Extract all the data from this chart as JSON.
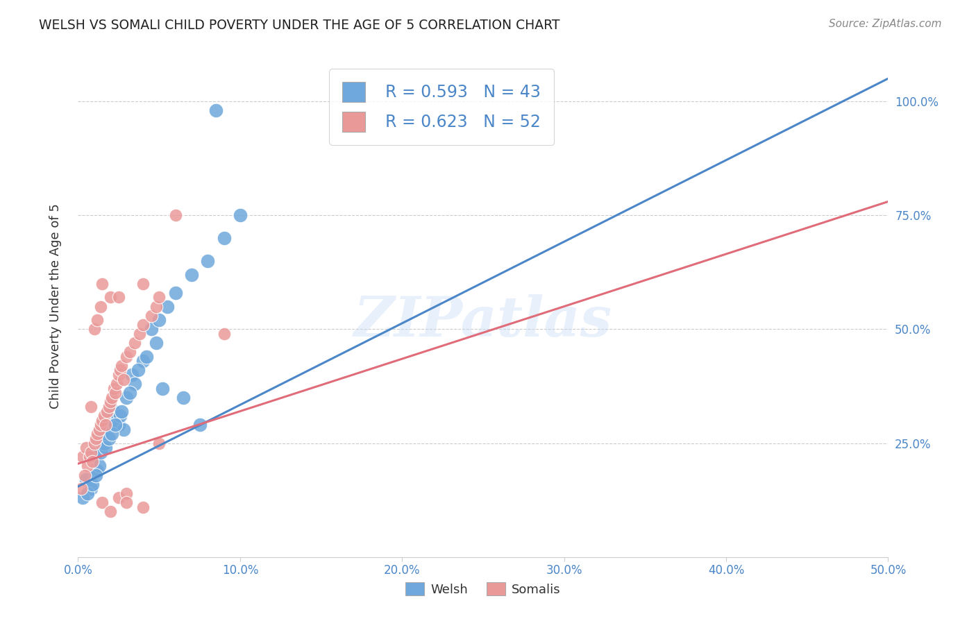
{
  "title": "WELSH VS SOMALI CHILD POVERTY UNDER THE AGE OF 5 CORRELATION CHART",
  "source": "Source: ZipAtlas.com",
  "ylabel": "Child Poverty Under the Age of 5",
  "legend_welsh_R": "R = 0.593",
  "legend_welsh_N": "N = 43",
  "legend_somali_R": "R = 0.623",
  "legend_somali_N": "N = 52",
  "legend_labels": [
    "Welsh",
    "Somalis"
  ],
  "welsh_color": "#6fa8dc",
  "somali_color": "#ea9999",
  "welsh_line_color": "#4a86c8",
  "somali_line_color": "#e06c7a",
  "background_color": "#ffffff",
  "watermark": "ZIPatlas",
  "welsh_scatter": [
    [
      0.5,
      17.0
    ],
    [
      0.8,
      15.0
    ],
    [
      1.0,
      22.0
    ],
    [
      1.2,
      19.0
    ],
    [
      1.3,
      20.0
    ],
    [
      1.4,
      23.0
    ],
    [
      1.5,
      26.0
    ],
    [
      1.6,
      25.0
    ],
    [
      1.8,
      27.0
    ],
    [
      2.0,
      30.0
    ],
    [
      2.2,
      32.0
    ],
    [
      2.5,
      29.0
    ],
    [
      2.6,
      31.0
    ],
    [
      2.8,
      28.0
    ],
    [
      3.0,
      35.0
    ],
    [
      3.3,
      40.0
    ],
    [
      3.5,
      38.0
    ],
    [
      4.0,
      43.0
    ],
    [
      4.5,
      50.0
    ],
    [
      4.8,
      47.0
    ],
    [
      5.0,
      52.0
    ],
    [
      5.5,
      55.0
    ],
    [
      6.0,
      58.0
    ],
    [
      7.0,
      62.0
    ],
    [
      8.0,
      65.0
    ],
    [
      9.0,
      70.0
    ],
    [
      10.0,
      75.0
    ],
    [
      0.3,
      13.0
    ],
    [
      0.6,
      14.0
    ],
    [
      0.9,
      16.0
    ],
    [
      1.1,
      18.0
    ],
    [
      1.7,
      24.0
    ],
    [
      1.9,
      26.0
    ],
    [
      2.1,
      27.0
    ],
    [
      2.3,
      29.0
    ],
    [
      2.7,
      32.0
    ],
    [
      3.2,
      36.0
    ],
    [
      3.7,
      41.0
    ],
    [
      4.2,
      44.0
    ],
    [
      5.2,
      37.0
    ],
    [
      6.5,
      35.0
    ],
    [
      7.5,
      29.0
    ],
    [
      8.5,
      98.0
    ]
  ],
  "somali_scatter": [
    [
      0.3,
      22.0
    ],
    [
      0.5,
      24.0
    ],
    [
      0.6,
      20.0
    ],
    [
      0.7,
      22.0
    ],
    [
      0.8,
      23.0
    ],
    [
      0.9,
      21.0
    ],
    [
      1.0,
      25.0
    ],
    [
      1.1,
      26.0
    ],
    [
      1.2,
      27.0
    ],
    [
      1.3,
      28.0
    ],
    [
      1.4,
      29.0
    ],
    [
      1.5,
      30.0
    ],
    [
      1.6,
      31.0
    ],
    [
      1.7,
      29.0
    ],
    [
      1.8,
      32.0
    ],
    [
      1.9,
      33.0
    ],
    [
      2.0,
      34.0
    ],
    [
      2.1,
      35.0
    ],
    [
      2.2,
      37.0
    ],
    [
      2.3,
      36.0
    ],
    [
      2.4,
      38.0
    ],
    [
      2.5,
      40.0
    ],
    [
      2.6,
      41.0
    ],
    [
      2.7,
      42.0
    ],
    [
      2.8,
      39.0
    ],
    [
      3.0,
      44.0
    ],
    [
      3.2,
      45.0
    ],
    [
      3.5,
      47.0
    ],
    [
      3.8,
      49.0
    ],
    [
      4.0,
      51.0
    ],
    [
      4.5,
      53.0
    ],
    [
      4.8,
      55.0
    ],
    [
      5.0,
      57.0
    ],
    [
      0.2,
      15.0
    ],
    [
      0.4,
      18.0
    ],
    [
      0.8,
      33.0
    ],
    [
      1.0,
      50.0
    ],
    [
      1.2,
      52.0
    ],
    [
      1.4,
      55.0
    ],
    [
      1.5,
      60.0
    ],
    [
      2.0,
      57.0
    ],
    [
      2.5,
      57.0
    ],
    [
      1.5,
      12.0
    ],
    [
      2.0,
      10.0
    ],
    [
      2.5,
      13.0
    ],
    [
      3.0,
      14.0
    ],
    [
      3.0,
      12.0
    ],
    [
      4.0,
      11.0
    ],
    [
      6.0,
      75.0
    ],
    [
      9.0,
      49.0
    ],
    [
      4.0,
      60.0
    ],
    [
      5.0,
      25.0
    ]
  ],
  "welsh_trend_x": [
    0.0,
    50.0
  ],
  "welsh_trend_y": [
    15.5,
    105.0
  ],
  "somali_trend_x": [
    0.0,
    50.0
  ],
  "somali_trend_y": [
    20.5,
    78.0
  ],
  "xlim": [
    0.0,
    50.0
  ],
  "ylim": [
    0.0,
    110.0
  ],
  "x_ticks": [
    0.0,
    10.0,
    20.0,
    30.0,
    40.0,
    50.0
  ],
  "x_tick_labels": [
    "0.0%",
    "10.0%",
    "20.0%",
    "30.0%",
    "40.0%",
    "50.0%"
  ],
  "y_ticks": [
    25.0,
    50.0,
    75.0,
    100.0
  ],
  "y_tick_labels": [
    "25.0%",
    "50.0%",
    "75.0%",
    "100.0%"
  ]
}
